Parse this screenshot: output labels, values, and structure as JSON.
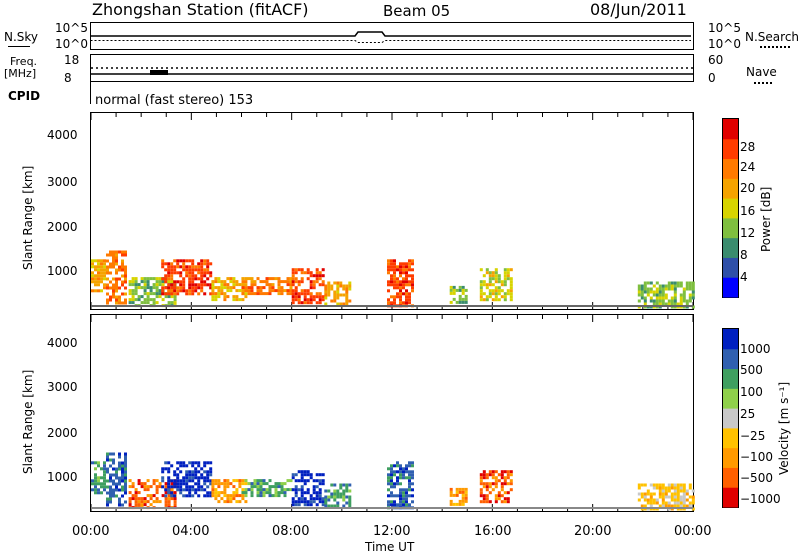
{
  "header": {
    "station": "Zhongshan Station (fitACF)",
    "beam": "Beam 05",
    "date": "08/Jun/2011"
  },
  "top_panels": {
    "nsky_label": "N.Sky",
    "nsky_ticks": [
      "10^5",
      "10^0"
    ],
    "nsearch_label": "N.Search",
    "nsearch_ticks": [
      "10^5",
      "10^0"
    ],
    "freq_label": "Freq.",
    "freq_unit": "[MHz]",
    "freq_ticks": [
      "18",
      "8"
    ],
    "nave_label": "Nave",
    "nave_ticks": [
      "60",
      "0"
    ],
    "cpid_label": "CPID",
    "cpid_text": "normal (fast stereo) 153"
  },
  "colors": {
    "power_scale": [
      "#0000ff",
      "#2e4fa8",
      "#3a8c6e",
      "#7fbf3f",
      "#d7d400",
      "#f5a300",
      "#ff7a00",
      "#ff3c00",
      "#e00000"
    ],
    "velocity_scale": [
      "#e00000",
      "#ff6000",
      "#ff9a00",
      "#ffc200",
      "#c8c8c8",
      "#8fd04a",
      "#3f9f60",
      "#3060b0",
      "#0020c0"
    ]
  },
  "power_colorbar": {
    "label": "Power [dB]",
    "ticks": [
      "28",
      "24",
      "20",
      "16",
      "12",
      "8",
      "4"
    ]
  },
  "velocity_colorbar": {
    "label": "Velocity [m s⁻¹]",
    "ticks": [
      "1000",
      "500",
      "100",
      "25",
      "−25",
      "−100",
      "−500",
      "−1000"
    ]
  },
  "chart_data": [
    {
      "type": "heatmap",
      "name": "power",
      "xlabel": "",
      "ylabel": "Slant Range [km]",
      "x_ticks": [
        "00:00",
        "04:00",
        "08:00",
        "12:00",
        "16:00",
        "20:00",
        "00:00"
      ],
      "y_ticks": [
        "4000",
        "3000",
        "2000",
        "1000"
      ],
      "xlim": [
        0,
        24
      ],
      "ylim": [
        180,
        4600
      ],
      "regions": [
        {
          "t0": 0.0,
          "t1": 0.5,
          "r0": 600,
          "r1": 1300,
          "level": 5
        },
        {
          "t0": 0.6,
          "t1": 1.4,
          "r0": 300,
          "r1": 1500,
          "level": 6
        },
        {
          "t0": 1.5,
          "t1": 3.3,
          "r0": 250,
          "r1": 900,
          "level": 3
        },
        {
          "t0": 2.8,
          "t1": 4.8,
          "r0": 500,
          "r1": 1300,
          "level": 7
        },
        {
          "t0": 4.8,
          "t1": 6.2,
          "r0": 400,
          "r1": 900,
          "level": 5
        },
        {
          "t0": 6.0,
          "t1": 8.0,
          "r0": 500,
          "r1": 900,
          "level": 6
        },
        {
          "t0": 8.0,
          "t1": 9.3,
          "r0": 300,
          "r1": 1100,
          "level": 7
        },
        {
          "t0": 9.3,
          "t1": 10.3,
          "r0": 300,
          "r1": 800,
          "level": 5
        },
        {
          "t0": 11.8,
          "t1": 12.8,
          "r0": 250,
          "r1": 1300,
          "level": 7
        },
        {
          "t0": 14.3,
          "t1": 14.9,
          "r0": 300,
          "r1": 700,
          "level": 3
        },
        {
          "t0": 15.5,
          "t1": 16.8,
          "r0": 400,
          "r1": 1100,
          "level": 4
        },
        {
          "t0": 21.8,
          "t1": 24.0,
          "r0": 250,
          "r1": 800,
          "level": 3
        }
      ]
    },
    {
      "type": "heatmap",
      "name": "velocity",
      "xlabel": "Time UT",
      "ylabel": "Slant Range [km]",
      "x_ticks": [
        "00:00",
        "04:00",
        "08:00",
        "12:00",
        "16:00",
        "20:00",
        "00:00"
      ],
      "y_ticks": [
        "4000",
        "3000",
        "2000",
        "1000"
      ],
      "xlim": [
        0,
        24
      ],
      "ylim": [
        180,
        4600
      ],
      "regions": [
        {
          "t0": 0.0,
          "t1": 0.5,
          "r0": 600,
          "r1": 1300,
          "level": 6
        },
        {
          "t0": 0.6,
          "t1": 1.4,
          "r0": 300,
          "r1": 1500,
          "level": 7
        },
        {
          "t0": 1.5,
          "t1": 3.3,
          "r0": 250,
          "r1": 900,
          "level": 1
        },
        {
          "t0": 2.8,
          "t1": 4.8,
          "r0": 500,
          "r1": 1300,
          "level": 8
        },
        {
          "t0": 4.8,
          "t1": 6.2,
          "r0": 400,
          "r1": 900,
          "level": 2
        },
        {
          "t0": 6.0,
          "t1": 8.0,
          "r0": 500,
          "r1": 900,
          "level": 6
        },
        {
          "t0": 8.0,
          "t1": 9.3,
          "r0": 300,
          "r1": 1100,
          "level": 8
        },
        {
          "t0": 9.3,
          "t1": 10.3,
          "r0": 300,
          "r1": 800,
          "level": 6
        },
        {
          "t0": 11.8,
          "t1": 12.8,
          "r0": 250,
          "r1": 1300,
          "level": 7
        },
        {
          "t0": 14.3,
          "t1": 14.9,
          "r0": 300,
          "r1": 700,
          "level": 2
        },
        {
          "t0": 15.5,
          "t1": 16.8,
          "r0": 400,
          "r1": 1100,
          "level": 1
        },
        {
          "t0": 21.8,
          "t1": 24.0,
          "r0": 250,
          "r1": 800,
          "level": 3
        }
      ]
    }
  ]
}
